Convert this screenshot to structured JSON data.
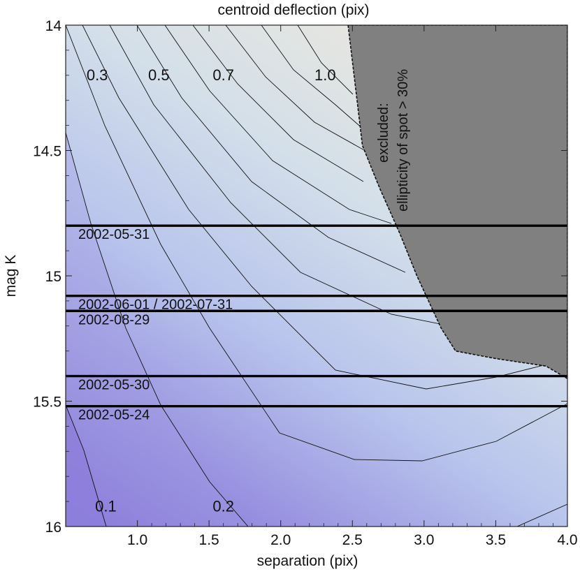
{
  "chart_data": {
    "type": "contour",
    "title": "centroid deflection (pix)",
    "xlabel": "separation (pix)",
    "ylabel": "mag K",
    "xlim": [
      0.5,
      4.0
    ],
    "ylim": [
      16.0,
      14.0
    ],
    "y_inverted": true,
    "xticks": [
      "1.0",
      "1.5",
      "2.0",
      "2.5",
      "3.0",
      "3.5",
      "4.0"
    ],
    "xtick_values": [
      1.0,
      1.5,
      2.0,
      2.5,
      3.0,
      3.5,
      4.0
    ],
    "yticks": [
      "14",
      "14.5",
      "15",
      "15.5",
      "16"
    ],
    "ytick_values": [
      14.0,
      14.5,
      15.0,
      15.5,
      16.0
    ],
    "colormap": {
      "low": "#7f6ad6",
      "high": "#e9e7df"
    },
    "contour_labels": [
      {
        "text": "0.3",
        "sep": 0.72,
        "mag": 14.2
      },
      {
        "text": "0.5",
        "sep": 1.15,
        "mag": 14.2
      },
      {
        "text": "0.7",
        "sep": 1.6,
        "mag": 14.2
      },
      {
        "text": "1.0",
        "sep": 2.31,
        "mag": 14.2
      },
      {
        "text": "0.1",
        "sep": 0.78,
        "mag": 15.92
      },
      {
        "text": "0.2",
        "sep": 1.6,
        "mag": 15.92
      }
    ],
    "excluded_region": {
      "label_line1": "excluded:",
      "label_line2": "ellipticity of spot > 30%",
      "fill": "#808080",
      "boundary": [
        [
          2.47,
          14.0
        ],
        [
          2.52,
          14.24
        ],
        [
          2.57,
          14.48
        ],
        [
          2.69,
          14.65
        ],
        [
          2.83,
          14.83
        ],
        [
          2.95,
          15.0
        ],
        [
          3.12,
          15.21
        ],
        [
          3.22,
          15.3
        ],
        [
          3.5,
          15.33
        ],
        [
          3.85,
          15.36
        ],
        [
          4.0,
          15.41
        ]
      ]
    },
    "observation_lines": [
      {
        "label": "2002-05-31",
        "mag": 14.8
      },
      {
        "label": "2002-06-01 / 2002-07-31",
        "mag": 15.08
      },
      {
        "label": "2002-08-29",
        "mag": 15.14
      },
      {
        "label": "2002-05-30",
        "mag": 15.4
      },
      {
        "label": "2002-05-24",
        "mag": 15.52
      }
    ]
  }
}
